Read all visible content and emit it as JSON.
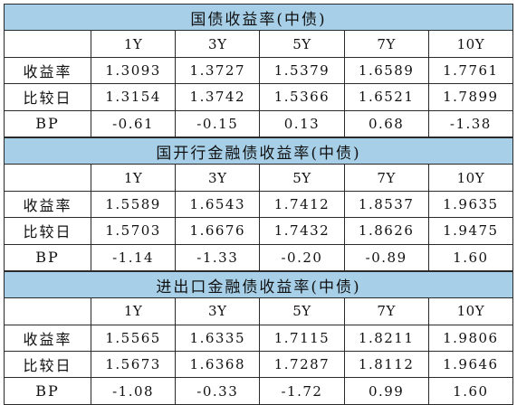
{
  "tenors": [
    "1Y",
    "3Y",
    "5Y",
    "7Y",
    "10Y"
  ],
  "sections": [
    {
      "title": "国债收益率(中债)",
      "rows": [
        {
          "label": "收益率",
          "values": [
            "1.3093",
            "1.3727",
            "1.5379",
            "1.6589",
            "1.7761"
          ]
        },
        {
          "label": "比较日",
          "values": [
            "1.3154",
            "1.3742",
            "1.5366",
            "1.6521",
            "1.7899"
          ]
        },
        {
          "label": "BP",
          "values": [
            "-0.61",
            "-0.15",
            "0.13",
            "0.68",
            "-1.38"
          ]
        }
      ]
    },
    {
      "title": "国开行金融债收益率(中债)",
      "rows": [
        {
          "label": "收益率",
          "values": [
            "1.5589",
            "1.6543",
            "1.7412",
            "1.8537",
            "1.9635"
          ]
        },
        {
          "label": "比较日",
          "values": [
            "1.5703",
            "1.6676",
            "1.7432",
            "1.8626",
            "1.9475"
          ]
        },
        {
          "label": "BP",
          "values": [
            "-1.14",
            "-1.33",
            "-0.20",
            "-0.89",
            "1.60"
          ]
        }
      ]
    },
    {
      "title": "进出口金融债收益率(中债)",
      "rows": [
        {
          "label": "收益率",
          "values": [
            "1.5565",
            "1.6335",
            "1.7115",
            "1.8211",
            "1.9806"
          ]
        },
        {
          "label": "比较日",
          "values": [
            "1.5673",
            "1.6368",
            "1.7287",
            "1.8112",
            "1.9646"
          ]
        },
        {
          "label": "BP",
          "values": [
            "-1.08",
            "-0.33",
            "-1.72",
            "0.99",
            "1.60"
          ]
        }
      ]
    }
  ],
  "colors": {
    "title_background": "#a7d0e8",
    "border": "#2a2a2a",
    "text": "#111111"
  }
}
